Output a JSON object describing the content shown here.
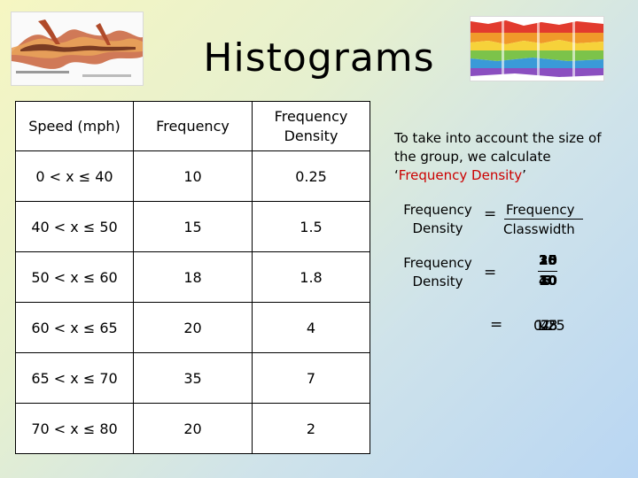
{
  "title": "Histograms",
  "table": {
    "headers": [
      "Speed (mph)",
      "Frequency",
      "Frequency Density"
    ],
    "rows": [
      [
        "0 < x ≤ 40",
        "10",
        "0.25"
      ],
      [
        "40 < x ≤ 50",
        "15",
        "1.5"
      ],
      [
        "50 < x ≤ 60",
        "18",
        "1.8"
      ],
      [
        "60 < x ≤ 65",
        "20",
        "4"
      ],
      [
        "65 < x ≤ 70",
        "35",
        "7"
      ],
      [
        "70 < x ≤ 80",
        "20",
        "2"
      ]
    ]
  },
  "explanation": {
    "prefix": "To take into account the size of the group, we calculate ‘",
    "highlight": "Frequency Density",
    "suffix": "’"
  },
  "formula1": {
    "lhs_line1": "Frequency",
    "lhs_line2": "Density",
    "equals": "=",
    "numerator": "Frequency",
    "denominator": "Classwidth"
  },
  "formula2": {
    "lhs_line1": "Frequency",
    "lhs_line2": "Density",
    "equals": "=",
    "numerator_overlay": [
      "10",
      "15",
      "18",
      "20",
      "35",
      "20"
    ],
    "denominator_overlay": [
      "40",
      "10",
      "10",
      "5",
      "5",
      "10"
    ],
    "result_equals": "=",
    "result_overlay": [
      "0.25",
      "1.5",
      "1.8",
      "4",
      "7",
      "2"
    ]
  },
  "colors": {
    "highlight": "#cc0000",
    "gradient_start": "#f6f6c2",
    "gradient_end": "#b9d6f3"
  }
}
